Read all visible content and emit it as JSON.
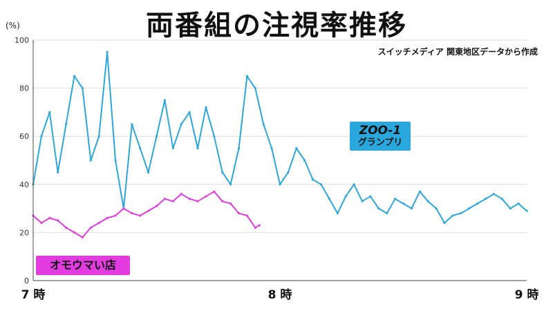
{
  "chart_data": {
    "type": "line",
    "title": "両番組の注視率推移",
    "subtitle": "スイッチメディア 関東地区データから作成",
    "y_unit": "(%)",
    "ylim": [
      0,
      100
    ],
    "y_ticks": [
      "0",
      "20",
      "40",
      "60",
      "80",
      "100"
    ],
    "x_range_minutes": [
      0,
      120
    ],
    "x_ticks": [
      {
        "minute": 0,
        "label": "7 時"
      },
      {
        "minute": 60,
        "label": "8 時"
      },
      {
        "minute": 120,
        "label": "9 時"
      }
    ],
    "grid": true,
    "series": [
      {
        "name_lines": [
          "ZOO-1",
          "グランプリ"
        ],
        "color": "#2aa7dc",
        "x_minutes": [
          0,
          2,
          4,
          6,
          8,
          10,
          12,
          14,
          16,
          18,
          20,
          22,
          24,
          26,
          28,
          30,
          32,
          34,
          36,
          38,
          40,
          42,
          44,
          46,
          48,
          50,
          52,
          54,
          56,
          58,
          60,
          62,
          64,
          66,
          68,
          70,
          72,
          74,
          76,
          78,
          80,
          82,
          84,
          86,
          88,
          90,
          92,
          94,
          96,
          98,
          100,
          102,
          104,
          106,
          108,
          110,
          112,
          114,
          116,
          118,
          120
        ],
        "values": [
          40,
          60,
          70,
          45,
          65,
          85,
          80,
          50,
          60,
          95,
          50,
          30,
          65,
          55,
          45,
          60,
          75,
          55,
          65,
          70,
          55,
          72,
          60,
          45,
          40,
          55,
          85,
          80,
          65,
          55,
          40,
          45,
          55,
          50,
          42,
          40,
          34,
          28,
          35,
          40,
          33,
          35,
          30,
          28,
          34,
          32,
          30,
          37,
          33,
          30,
          24,
          27,
          28,
          30,
          32,
          34,
          36,
          34,
          30,
          32,
          29
        ]
      },
      {
        "name": "オモウマい店",
        "color": "#e23ce0",
        "x_minutes": [
          0,
          2,
          4,
          6,
          8,
          10,
          12,
          14,
          16,
          18,
          20,
          22,
          24,
          26,
          28,
          30,
          32,
          34,
          36,
          38,
          40,
          42,
          44,
          46,
          48,
          50,
          52,
          54,
          55
        ],
        "values": [
          27,
          24,
          26,
          25,
          22,
          20,
          18,
          22,
          24,
          26,
          27,
          30,
          28,
          27,
          29,
          31,
          34,
          33,
          36,
          34,
          33,
          35,
          37,
          33,
          32,
          28,
          27,
          22,
          23
        ]
      }
    ]
  }
}
